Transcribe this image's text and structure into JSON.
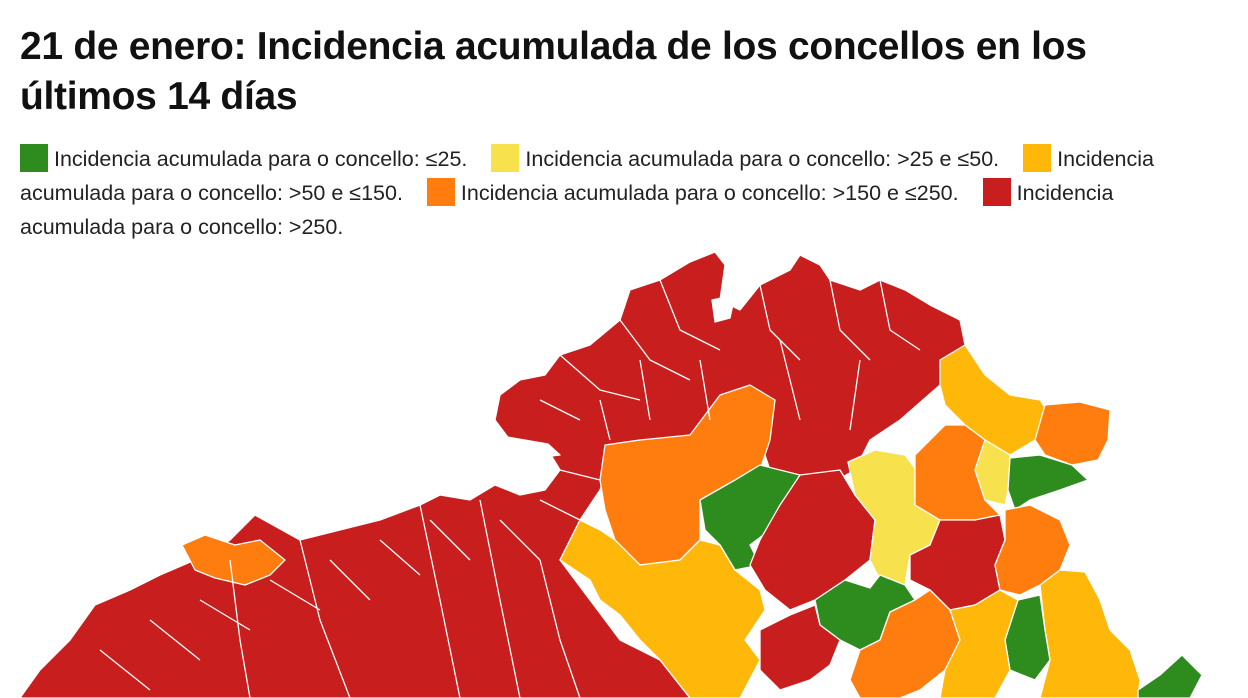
{
  "title": "21 de enero: Incidencia acumulada de los concellos en los últimos 14 días",
  "legend": [
    {
      "label": "Incidencia acumulada para o concello: ≤25.",
      "color": "#2e8b1e"
    },
    {
      "label": "Incidencia acumulada para o concello: >25 e ≤50.",
      "color": "#f7e14c"
    },
    {
      "label": "Incidencia acumulada para o concello: >50 e ≤150.",
      "color": "#ffb80a"
    },
    {
      "label": "Incidencia acumulada para o concello: >150 e ≤250.",
      "color": "#ff7d0e"
    },
    {
      "label": "Incidencia acumulada para o concello: >250.",
      "color": "#c81e1e"
    }
  ],
  "colors": {
    "background": "#ffffff",
    "border": "#ffffff"
  }
}
